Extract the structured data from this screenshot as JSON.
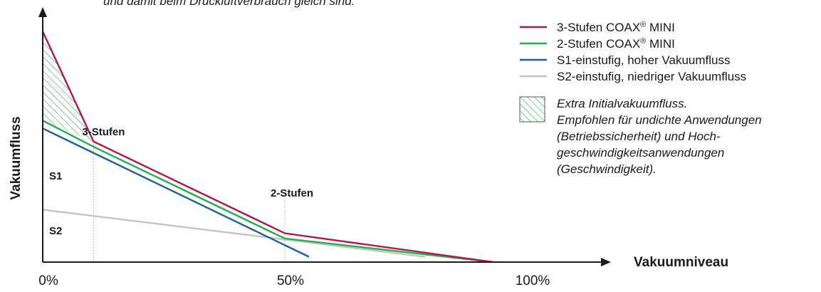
{
  "header": {
    "clipped_text": "und damit beim Druckluftverbrauch gleich sind."
  },
  "chart_data": {
    "type": "line",
    "xlabel": "Vakuumniveau",
    "ylabel": "Vakuumfluss",
    "xlim": [
      0,
      115
    ],
    "ylim": [
      0,
      100
    ],
    "x_ticks": [
      {
        "value": 0,
        "label": "0%"
      },
      {
        "value": 50,
        "label": "50%"
      },
      {
        "value": 100,
        "label": "100%"
      }
    ],
    "series": [
      {
        "name": "3-Stufen COAX® MINI",
        "color": "#b0184e",
        "points": [
          [
            0,
            88
          ],
          [
            10.5,
            46
          ],
          [
            50,
            11
          ],
          [
            93,
            0
          ]
        ]
      },
      {
        "name": "2-Stufen COAX® MINI",
        "color": "#22b04a",
        "points": [
          [
            0,
            54
          ],
          [
            10.5,
            44
          ],
          [
            50,
            9
          ],
          [
            93,
            0
          ]
        ]
      },
      {
        "name": "S1-einstufig, hoher Vakuumfluss",
        "color": "#1f5fa0",
        "points": [
          [
            0,
            51
          ],
          [
            55,
            2
          ]
        ]
      },
      {
        "name": "S2-einstufig, niedriger Vakuumfluss",
        "color": "#c4c4c4",
        "points": [
          [
            0,
            20
          ],
          [
            79,
            2
          ]
        ]
      }
    ],
    "hatched_area": {
      "points": [
        [
          0,
          88
        ],
        [
          10.5,
          46
        ],
        [
          0,
          54
        ]
      ],
      "color": "#22b04a"
    },
    "annotations": [
      {
        "id": "three-stage",
        "text": "3-Stufen",
        "x": 10.5,
        "y": 46,
        "color": "#1a1a1a"
      },
      {
        "id": "two-stage",
        "text": "2-Stufen",
        "x": 50,
        "y": 11,
        "color": "#1a1a1a"
      },
      {
        "id": "s1",
        "text": "S1",
        "x": 0,
        "y": 51,
        "color": "#1f5fa0"
      },
      {
        "id": "s2",
        "text": "S2",
        "x": 0,
        "y": 20,
        "color": "#c4c4c4"
      }
    ],
    "legend": {
      "placement": "top-right",
      "items": [
        {
          "label": "3-Stufen COAX",
          "sup": "®",
          "suffix": " MINI",
          "color": "#b0184e"
        },
        {
          "label": "2-Stufen COAX",
          "sup": "®",
          "suffix": " MINI",
          "color": "#22b04a"
        },
        {
          "label": "S1-einstufig, hoher Vakuumfluss",
          "sup": "",
          "suffix": "",
          "color": "#1f5fa0"
        },
        {
          "label": "S2-einstufig, niedriger Vakuumfluss",
          "sup": "",
          "suffix": "",
          "color": "#c4c4c4"
        }
      ],
      "note_lines": [
        "Extra Initialvakuumfluss.",
        "Empfohlen für undichte Anwendungen",
        "(Betriebssicherheit) und Hoch-",
        "geschwindigkeitsanwendungen",
        "(Geschwindigkeit)."
      ]
    }
  }
}
